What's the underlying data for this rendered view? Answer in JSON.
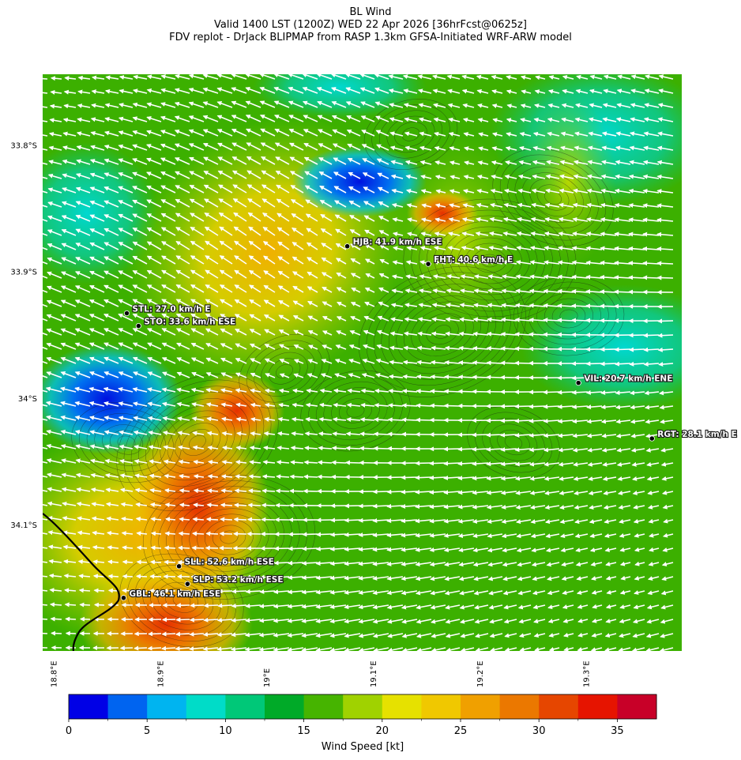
{
  "title": {
    "line1": "BL Wind",
    "line2": "Valid 1400 LST (1200Z) WED 22 Apr 2026 [36hrFcst@0625z]",
    "line3": "FDV replot - DrJack BLIPMAP from RASP 1.3km GFSA-Initiated WRF-ARW model"
  },
  "map": {
    "lon_range": [
      18.79,
      19.39
    ],
    "lat_range": [
      -34.2,
      -33.744
    ],
    "lat_ticks": [
      {
        "value": -33.8,
        "label": "33.8°S"
      },
      {
        "value": -33.9,
        "label": "33.9°S"
      },
      {
        "value": -34.0,
        "label": "34°S"
      },
      {
        "value": -34.1,
        "label": "34.1°S"
      }
    ],
    "lon_ticks": [
      {
        "value": 18.8,
        "label": "18.8°E"
      },
      {
        "value": 18.9,
        "label": "18.9°E"
      },
      {
        "value": 19.0,
        "label": "19°E"
      },
      {
        "value": 19.1,
        "label": "19.1°E"
      },
      {
        "value": 19.2,
        "label": "19.2°E"
      },
      {
        "value": 19.3,
        "label": "19.3°E"
      }
    ],
    "field": "BL wind speed (shaded) with wind direction arrows (white) and terrain contours (black)",
    "stations": [
      {
        "code": "HJB",
        "lon": 19.076,
        "lat": -33.88,
        "text": "HJB: 41.9 km/h ESE"
      },
      {
        "code": "FHT",
        "lon": 19.152,
        "lat": -33.894,
        "text": "FHT: 40.6 km/h E"
      },
      {
        "code": "STL",
        "lon": 18.869,
        "lat": -33.933,
        "text": "STL: 27.0 km/h E"
      },
      {
        "code": "STO",
        "lon": 18.88,
        "lat": -33.943,
        "text": "STO: 33.6 km/h ESE"
      },
      {
        "code": "VIL",
        "lon": 19.293,
        "lat": -33.988,
        "text": "VIL: 20.7 km/h ENE"
      },
      {
        "code": "RGT",
        "lon": 19.362,
        "lat": -34.032,
        "text": "RGT: 28.1 km/h E"
      },
      {
        "code": "SLL",
        "lon": 18.918,
        "lat": -34.133,
        "text": "SLL: 52.6 km/h ESE"
      },
      {
        "code": "SLP",
        "lon": 18.926,
        "lat": -34.147,
        "text": "SLP: 53.2 km/h ESE"
      },
      {
        "code": "GBL",
        "lon": 18.866,
        "lat": -34.158,
        "text": "GBL: 46.1 km/h ESE"
      }
    ]
  },
  "colorbar": {
    "label": "Wind Speed [kt]",
    "min": 0,
    "max": 37.5,
    "step": 2.5,
    "colors": [
      "#0000e6",
      "#0064f0",
      "#00b4f0",
      "#00dcc8",
      "#00c878",
      "#00aa28",
      "#46b400",
      "#a0d200",
      "#e6e100",
      "#f0c800",
      "#f0a000",
      "#eb7800",
      "#e64600",
      "#e61400",
      "#c80028"
    ],
    "ticks": [
      0,
      5,
      10,
      15,
      20,
      25,
      30,
      35
    ],
    "tick_labels": [
      "0",
      "5",
      "10",
      "15",
      "20",
      "25",
      "30",
      "35"
    ]
  }
}
